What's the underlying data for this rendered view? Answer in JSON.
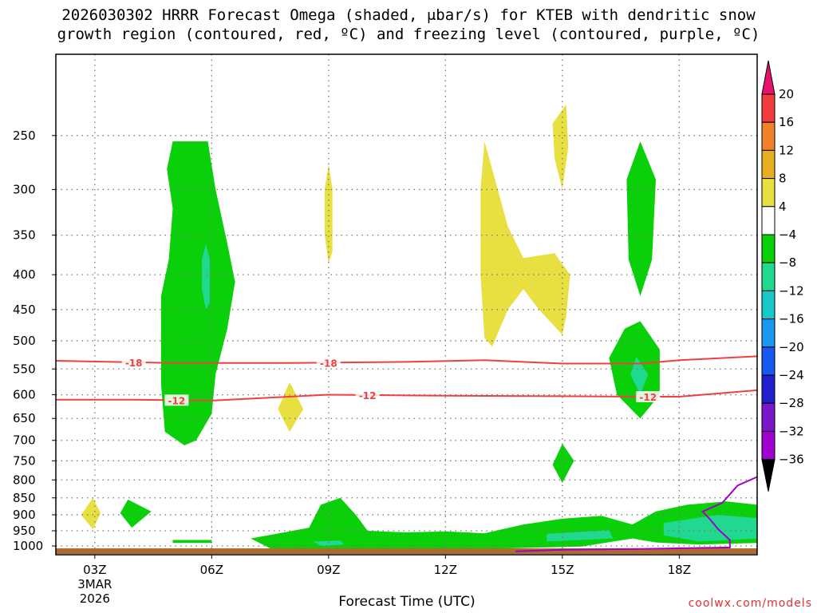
{
  "header": {
    "title_line1": "2026030302 HRRR Forecast Omega (shaded, μbar/s) for KTEB with dendritic snow",
    "title_line2": "growth region (contoured, red, ºC) and freezing level (contoured, purple, ºC)"
  },
  "footer": {
    "xlabel": "Forecast Time (UTC)",
    "credit": "coolwx.com/models"
  },
  "chart_data": {
    "type": "time-height contour (omega)",
    "station": "KTEB",
    "model": "HRRR",
    "init": "2026030302",
    "x_range_hours": [
      2,
      20
    ],
    "y_range_hPa": [
      1030,
      190
    ],
    "y_scale": "log-pressure (inverted)",
    "y_ticks": [
      250,
      300,
      350,
      400,
      450,
      500,
      550,
      600,
      650,
      700,
      750,
      800,
      850,
      900,
      950,
      1000
    ],
    "x_ticks": [
      {
        "hour": 3,
        "label": "03Z",
        "date_line1": "3MAR",
        "date_line2": "2026"
      },
      {
        "hour": 6,
        "label": "06Z"
      },
      {
        "hour": 9,
        "label": "09Z"
      },
      {
        "hour": 12,
        "label": "12Z"
      },
      {
        "hour": 15,
        "label": "15Z"
      },
      {
        "hour": 18,
        "label": "18Z"
      }
    ],
    "grid": true,
    "colorbar": {
      "units": "μbar/s",
      "levels": [
        20,
        16,
        12,
        8,
        4,
        -4,
        -8,
        -12,
        -16,
        -20,
        -24,
        -28,
        -32,
        -36
      ],
      "labels": [
        "20",
        "16",
        "12",
        "8",
        "4",
        "−4",
        "−8",
        "−12",
        "−16",
        "−20",
        "−24",
        "−28",
        "−32",
        "−36"
      ],
      "colors": [
        "#e8116e",
        "#f03c3c",
        "#f0802a",
        "#e8b020",
        "#e8e040",
        "#ffffff",
        "#0ad00a",
        "#20d890",
        "#18c8c8",
        "#1898f0",
        "#1858f0",
        "#2020d0",
        "#7818c8",
        "#a000d0",
        "#a8a8a8",
        "#000000"
      ]
    },
    "contours": [
      {
        "name": "dgz-upper",
        "color": "#f04040",
        "value_label": "-18",
        "points": [
          [
            2,
            535
          ],
          [
            5,
            539
          ],
          [
            8,
            539
          ],
          [
            11,
            537
          ],
          [
            13,
            534
          ],
          [
            15,
            540
          ],
          [
            17,
            540
          ],
          [
            18,
            534
          ],
          [
            20,
            527
          ]
        ],
        "label_positions": [
          4,
          9
        ]
      },
      {
        "name": "dgz-lower",
        "color": "#f04040",
        "value_label": "-12",
        "points": [
          [
            2,
            610
          ],
          [
            4,
            610
          ],
          [
            6,
            612
          ],
          [
            9,
            600
          ],
          [
            12,
            602
          ],
          [
            15,
            603
          ],
          [
            17,
            604
          ],
          [
            18,
            604
          ],
          [
            20,
            591
          ]
        ],
        "label_positions": [
          5.1,
          10,
          17.2
        ]
      },
      {
        "name": "freezing-level",
        "color": "#a000c8",
        "value_label": "",
        "points": [
          [
            13.8,
            1018
          ],
          [
            15,
            1013
          ],
          [
            17,
            1010
          ],
          [
            19.3,
            1005
          ],
          [
            19.3,
            980
          ],
          [
            19,
            945
          ],
          [
            18.8,
            915
          ],
          [
            18.6,
            890
          ],
          [
            19.1,
            865
          ],
          [
            19.5,
            815
          ],
          [
            20,
            792
          ]
        ],
        "label_positions": []
      }
    ],
    "shaded_regions": [
      {
        "name": "green-col-06z",
        "color": "#0ad00a",
        "points": [
          [
            5.0,
            255
          ],
          [
            5.9,
            255
          ],
          [
            6.1,
            300
          ],
          [
            6.4,
            360
          ],
          [
            6.6,
            410
          ],
          [
            6.4,
            480
          ],
          [
            6.1,
            560
          ],
          [
            6.0,
            640
          ],
          [
            5.6,
            700
          ],
          [
            5.3,
            712
          ],
          [
            4.8,
            680
          ],
          [
            4.7,
            580
          ],
          [
            4.7,
            430
          ],
          [
            4.9,
            380
          ],
          [
            5.0,
            320
          ],
          [
            4.85,
            280
          ]
        ]
      },
      {
        "name": "teal-col-06z",
        "color": "#20d890",
        "points": [
          [
            5.85,
            360
          ],
          [
            5.95,
            380
          ],
          [
            5.95,
            440
          ],
          [
            5.85,
            450
          ],
          [
            5.75,
            420
          ],
          [
            5.75,
            380
          ]
        ]
      },
      {
        "name": "yellow-09z-upper",
        "color": "#e8e040",
        "points": [
          [
            9.0,
            275
          ],
          [
            9.1,
            300
          ],
          [
            9.1,
            370
          ],
          [
            9.0,
            385
          ],
          [
            8.9,
            350
          ],
          [
            8.9,
            300
          ]
        ]
      },
      {
        "name": "yellow-08z-mid",
        "color": "#e8e040",
        "points": [
          [
            8.0,
            575
          ],
          [
            8.35,
            630
          ],
          [
            8.0,
            680
          ],
          [
            7.7,
            630
          ]
        ]
      },
      {
        "name": "yellow-13z-block",
        "color": "#e8e040",
        "points": [
          [
            13.0,
            255
          ],
          [
            13.2,
            280
          ],
          [
            13.6,
            340
          ],
          [
            14.0,
            378
          ],
          [
            14.8,
            372
          ],
          [
            15.2,
            400
          ],
          [
            15.1,
            460
          ],
          [
            15.0,
            490
          ],
          [
            14.4,
            450
          ],
          [
            14.0,
            420
          ],
          [
            13.6,
            450
          ],
          [
            13.2,
            510
          ],
          [
            13.0,
            495
          ],
          [
            12.9,
            400
          ],
          [
            12.9,
            300
          ]
        ]
      },
      {
        "name": "yellow-15z-top",
        "color": "#e8e040",
        "points": [
          [
            15.1,
            225
          ],
          [
            15.15,
            260
          ],
          [
            15.0,
            300
          ],
          [
            14.8,
            270
          ],
          [
            14.75,
            240
          ]
        ]
      },
      {
        "name": "green-17z-upper",
        "color": "#0ad00a",
        "points": [
          [
            17.0,
            255
          ],
          [
            17.4,
            290
          ],
          [
            17.3,
            380
          ],
          [
            17.0,
            430
          ],
          [
            16.7,
            380
          ],
          [
            16.65,
            290
          ]
        ]
      },
      {
        "name": "green-17z-lower",
        "color": "#0ad00a",
        "points": [
          [
            17.0,
            468
          ],
          [
            17.5,
            515
          ],
          [
            17.5,
            600
          ],
          [
            17.0,
            650
          ],
          [
            16.4,
            600
          ],
          [
            16.2,
            530
          ],
          [
            16.6,
            480
          ]
        ]
      },
      {
        "name": "teal-17z-lower",
        "color": "#20d890",
        "points": [
          [
            16.9,
            528
          ],
          [
            17.2,
            560
          ],
          [
            17.0,
            600
          ],
          [
            16.75,
            560
          ]
        ]
      },
      {
        "name": "green-15z-mid",
        "color": "#0ad00a",
        "points": [
          [
            15.0,
            708
          ],
          [
            15.3,
            750
          ],
          [
            15.0,
            808
          ],
          [
            14.75,
            760
          ]
        ]
      },
      {
        "name": "yellow-03z-low",
        "color": "#e8e040",
        "points": [
          [
            2.95,
            850
          ],
          [
            3.15,
            895
          ],
          [
            2.95,
            945
          ],
          [
            2.65,
            900
          ]
        ]
      },
      {
        "name": "green-04z-low",
        "color": "#0ad00a",
        "points": [
          [
            3.85,
            855
          ],
          [
            4.45,
            890
          ],
          [
            3.95,
            940
          ],
          [
            3.65,
            895
          ]
        ]
      },
      {
        "name": "green-05z-small",
        "color": "#0ad00a",
        "points": [
          [
            5.0,
            980
          ],
          [
            6.0,
            980
          ],
          [
            6.0,
            990
          ],
          [
            5.0,
            990
          ]
        ]
      },
      {
        "name": "green-low-band",
        "color": "#0ad00a",
        "points": [
          [
            7.0,
            975
          ],
          [
            8.0,
            952
          ],
          [
            8.5,
            940
          ],
          [
            8.8,
            870
          ],
          [
            9.3,
            850
          ],
          [
            9.7,
            900
          ],
          [
            10.0,
            950
          ],
          [
            11.0,
            955
          ],
          [
            12.0,
            952
          ],
          [
            13.0,
            958
          ],
          [
            14.0,
            930
          ],
          [
            15.0,
            912
          ],
          [
            16.0,
            903
          ],
          [
            16.8,
            930
          ],
          [
            17.4,
            890
          ],
          [
            18.2,
            870
          ],
          [
            19.2,
            860
          ],
          [
            20.0,
            870
          ],
          [
            20.0,
            990
          ],
          [
            18.5,
            995
          ],
          [
            17.4,
            988
          ],
          [
            16.8,
            975
          ],
          [
            15.5,
            1002
          ],
          [
            13.0,
            1010
          ],
          [
            11.0,
            1008
          ],
          [
            9.0,
            1015
          ],
          [
            7.5,
            1008
          ]
        ]
      },
      {
        "name": "teal-09z-low",
        "color": "#20d890",
        "points": [
          [
            8.6,
            985
          ],
          [
            9.3,
            982
          ],
          [
            9.4,
            995
          ],
          [
            8.8,
            1000
          ]
        ]
      },
      {
        "name": "teal-15z-low",
        "color": "#20d890",
        "points": [
          [
            14.6,
            960
          ],
          [
            16.2,
            948
          ],
          [
            16.3,
            975
          ],
          [
            14.6,
            985
          ]
        ]
      },
      {
        "name": "teal-19z-low",
        "color": "#20d890",
        "points": [
          [
            17.6,
            925
          ],
          [
            19.0,
            900
          ],
          [
            20.0,
            910
          ],
          [
            20.0,
            975
          ],
          [
            18.5,
            985
          ],
          [
            17.6,
            965
          ]
        ]
      }
    ]
  }
}
